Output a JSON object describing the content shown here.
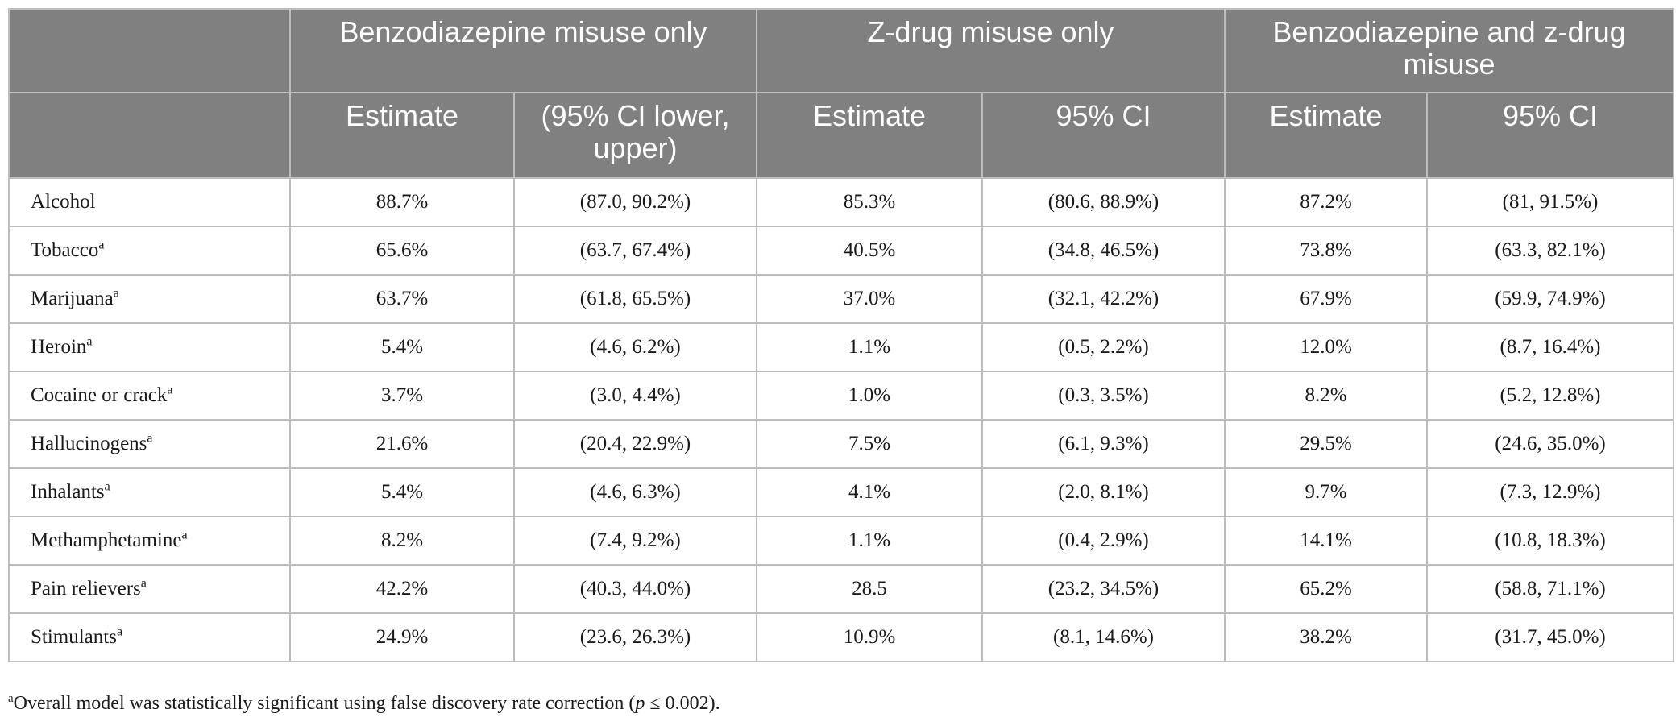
{
  "table": {
    "group_headers": [
      "Benzodiazepine misuse only",
      "Z-drug misuse only",
      "Benzodiazepine and z-drug misuse"
    ],
    "sub_headers": [
      "Estimate",
      "(95% CI lower, upper)",
      "Estimate",
      "95% CI",
      "Estimate",
      "95% CI"
    ],
    "rows": [
      {
        "label": "Alcohol",
        "sup": "",
        "cells": [
          "88.7%",
          "(87.0, 90.2%)",
          "85.3%",
          "(80.6, 88.9%)",
          "87.2%",
          "(81, 91.5%)"
        ]
      },
      {
        "label": "Tobacco",
        "sup": "a",
        "cells": [
          "65.6%",
          "(63.7, 67.4%)",
          "40.5%",
          "(34.8, 46.5%)",
          "73.8%",
          "(63.3, 82.1%)"
        ]
      },
      {
        "label": "Marijuana",
        "sup": "a",
        "cells": [
          "63.7%",
          "(61.8, 65.5%)",
          "37.0%",
          "(32.1, 42.2%)",
          "67.9%",
          "(59.9, 74.9%)"
        ]
      },
      {
        "label": "Heroin",
        "sup": "a",
        "cells": [
          "5.4%",
          "(4.6, 6.2%)",
          "1.1%",
          "(0.5, 2.2%)",
          "12.0%",
          "(8.7, 16.4%)"
        ]
      },
      {
        "label": "Cocaine or crack",
        "sup": "a",
        "cells": [
          "3.7%",
          "(3.0, 4.4%)",
          "1.0%",
          "(0.3, 3.5%)",
          "8.2%",
          "(5.2, 12.8%)"
        ]
      },
      {
        "label": "Hallucinogens",
        "sup": "a",
        "cells": [
          "21.6%",
          "(20.4, 22.9%)",
          "7.5%",
          "(6.1, 9.3%)",
          "29.5%",
          "(24.6, 35.0%)"
        ]
      },
      {
        "label": "Inhalants",
        "sup": "a",
        "cells": [
          "5.4%",
          "(4.6, 6.3%)",
          "4.1%",
          "(2.0, 8.1%)",
          "9.7%",
          "(7.3, 12.9%)"
        ]
      },
      {
        "label": "Methamphetamine",
        "sup": "a",
        "cells": [
          "8.2%",
          "(7.4, 9.2%)",
          "1.1%",
          "(0.4, 2.9%)",
          "14.1%",
          "(10.8, 18.3%)"
        ]
      },
      {
        "label": "Pain relievers",
        "sup": "a",
        "cells": [
          "42.2%",
          "(40.3, 44.0%)",
          "28.5",
          "(23.2, 34.5%)",
          "65.2%",
          "(58.8, 71.1%)"
        ]
      },
      {
        "label": "Stimulants",
        "sup": "a",
        "cells": [
          "24.9%",
          "(23.6, 26.3%)",
          "10.9%",
          "(8.1, 14.6%)",
          "38.2%",
          "(31.7, 45.0%)"
        ]
      }
    ]
  },
  "footnote": {
    "marker": "a",
    "text_before": "Overall model was statistically significant using false discovery rate correction (",
    "italic": "p",
    "text_after": " ≤ 0.002)."
  },
  "colors": {
    "header_bg": "#808080",
    "header_text": "#ffffff",
    "border": "#bdbdbd"
  }
}
